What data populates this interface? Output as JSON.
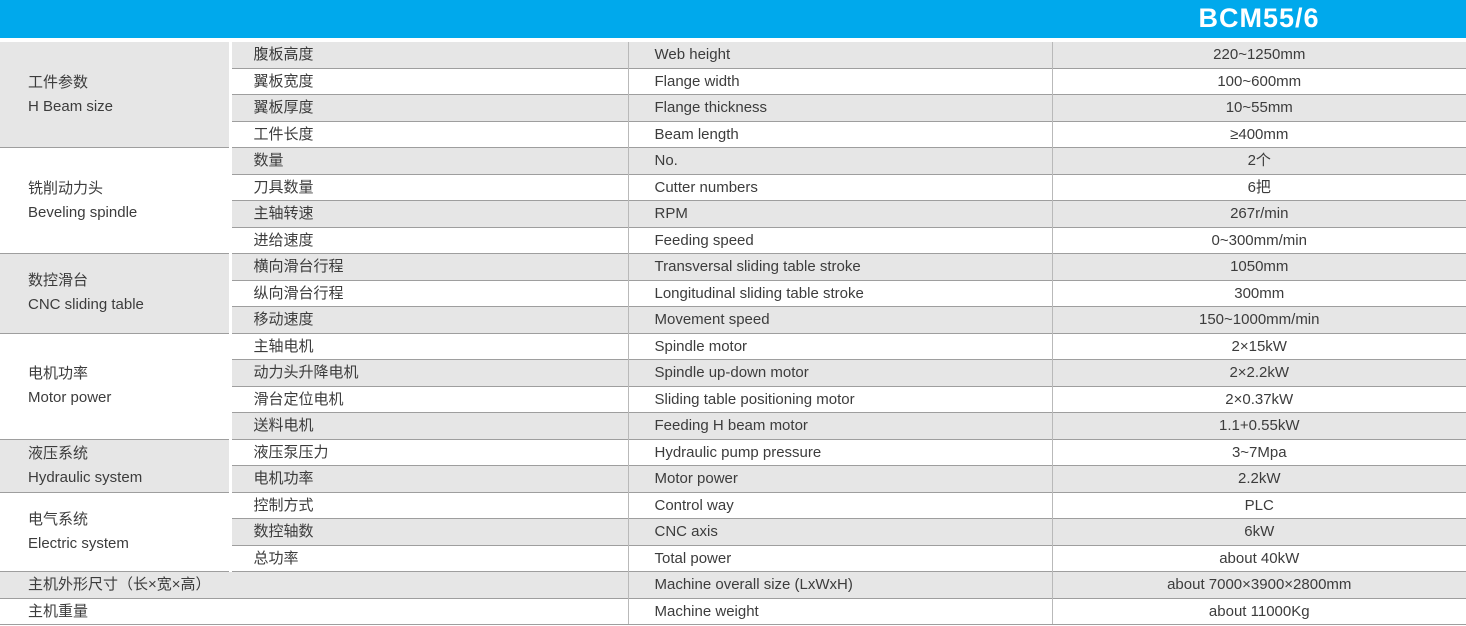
{
  "header": {
    "model": "BCM55/6"
  },
  "groups": [
    {
      "cn": "工件参数",
      "en": "H Beam size"
    },
    {
      "cn": "铣削动力头",
      "en": "Beveling spindle"
    },
    {
      "cn": "数控滑台",
      "en": "CNC sliding table"
    },
    {
      "cn": "电机功率",
      "en": "Motor power"
    },
    {
      "cn": "液压系统",
      "en": "Hydraulic system"
    },
    {
      "cn": "电气系统",
      "en": "Electric system"
    }
  ],
  "rows": [
    {
      "cn": "腹板高度",
      "en": "Web height",
      "value": "220~1250mm"
    },
    {
      "cn": "翼板宽度",
      "en": "Flange width",
      "value": "100~600mm"
    },
    {
      "cn": "翼板厚度",
      "en": "Flange thickness",
      "value": "10~55mm"
    },
    {
      "cn": "工件长度",
      "en": "Beam length",
      "value": "≥400mm"
    },
    {
      "cn": "数量",
      "en": "No.",
      "value": "2个"
    },
    {
      "cn": "刀具数量",
      "en": "Cutter numbers",
      "value": "6把"
    },
    {
      "cn": "主轴转速",
      "en": "RPM",
      "value": "267r/min"
    },
    {
      "cn": "进给速度",
      "en": "Feeding speed",
      "value": "0~300mm/min"
    },
    {
      "cn": "横向滑台行程",
      "en": "Transversal sliding table stroke",
      "value": "1050mm"
    },
    {
      "cn": "纵向滑台行程",
      "en": "Longitudinal sliding table stroke",
      "value": "300mm"
    },
    {
      "cn": "移动速度",
      "en": "Movement speed",
      "value": "150~1000mm/min"
    },
    {
      "cn": "主轴电机",
      "en": "Spindle motor",
      "value": "2×15kW"
    },
    {
      "cn": "动力头升降电机",
      "en": "Spindle up-down motor",
      "value": "2×2.2kW"
    },
    {
      "cn": "滑台定位电机",
      "en": "Sliding table positioning motor",
      "value": "2×0.37kW"
    },
    {
      "cn": "送料电机",
      "en": "Feeding H beam motor",
      "value": "1.1+0.55kW"
    },
    {
      "cn": "液压泵压力",
      "en": "Hydraulic pump pressure",
      "value": "3~7Mpa"
    },
    {
      "cn": "电机功率",
      "en": "Motor power",
      "value": "2.2kW"
    },
    {
      "cn": "控制方式",
      "en": "Control way",
      "value": "PLC"
    },
    {
      "cn": "数控轴数",
      "en": "CNC axis",
      "value": "6kW"
    },
    {
      "cn": "总功率",
      "en": "Total power",
      "value": "about 40kW"
    },
    {
      "cn": "主机外形尺寸（长×宽×高）",
      "en": "Machine overall size (LxWxH)",
      "value": "about 7000×3900×2800mm"
    },
    {
      "cn": "主机重量",
      "en": "Machine weight",
      "value": "about 11000Kg"
    }
  ],
  "colors": {
    "accent": "#00a9ec",
    "row_alt": "#e6e6e6",
    "text": "#3c3c3c"
  }
}
